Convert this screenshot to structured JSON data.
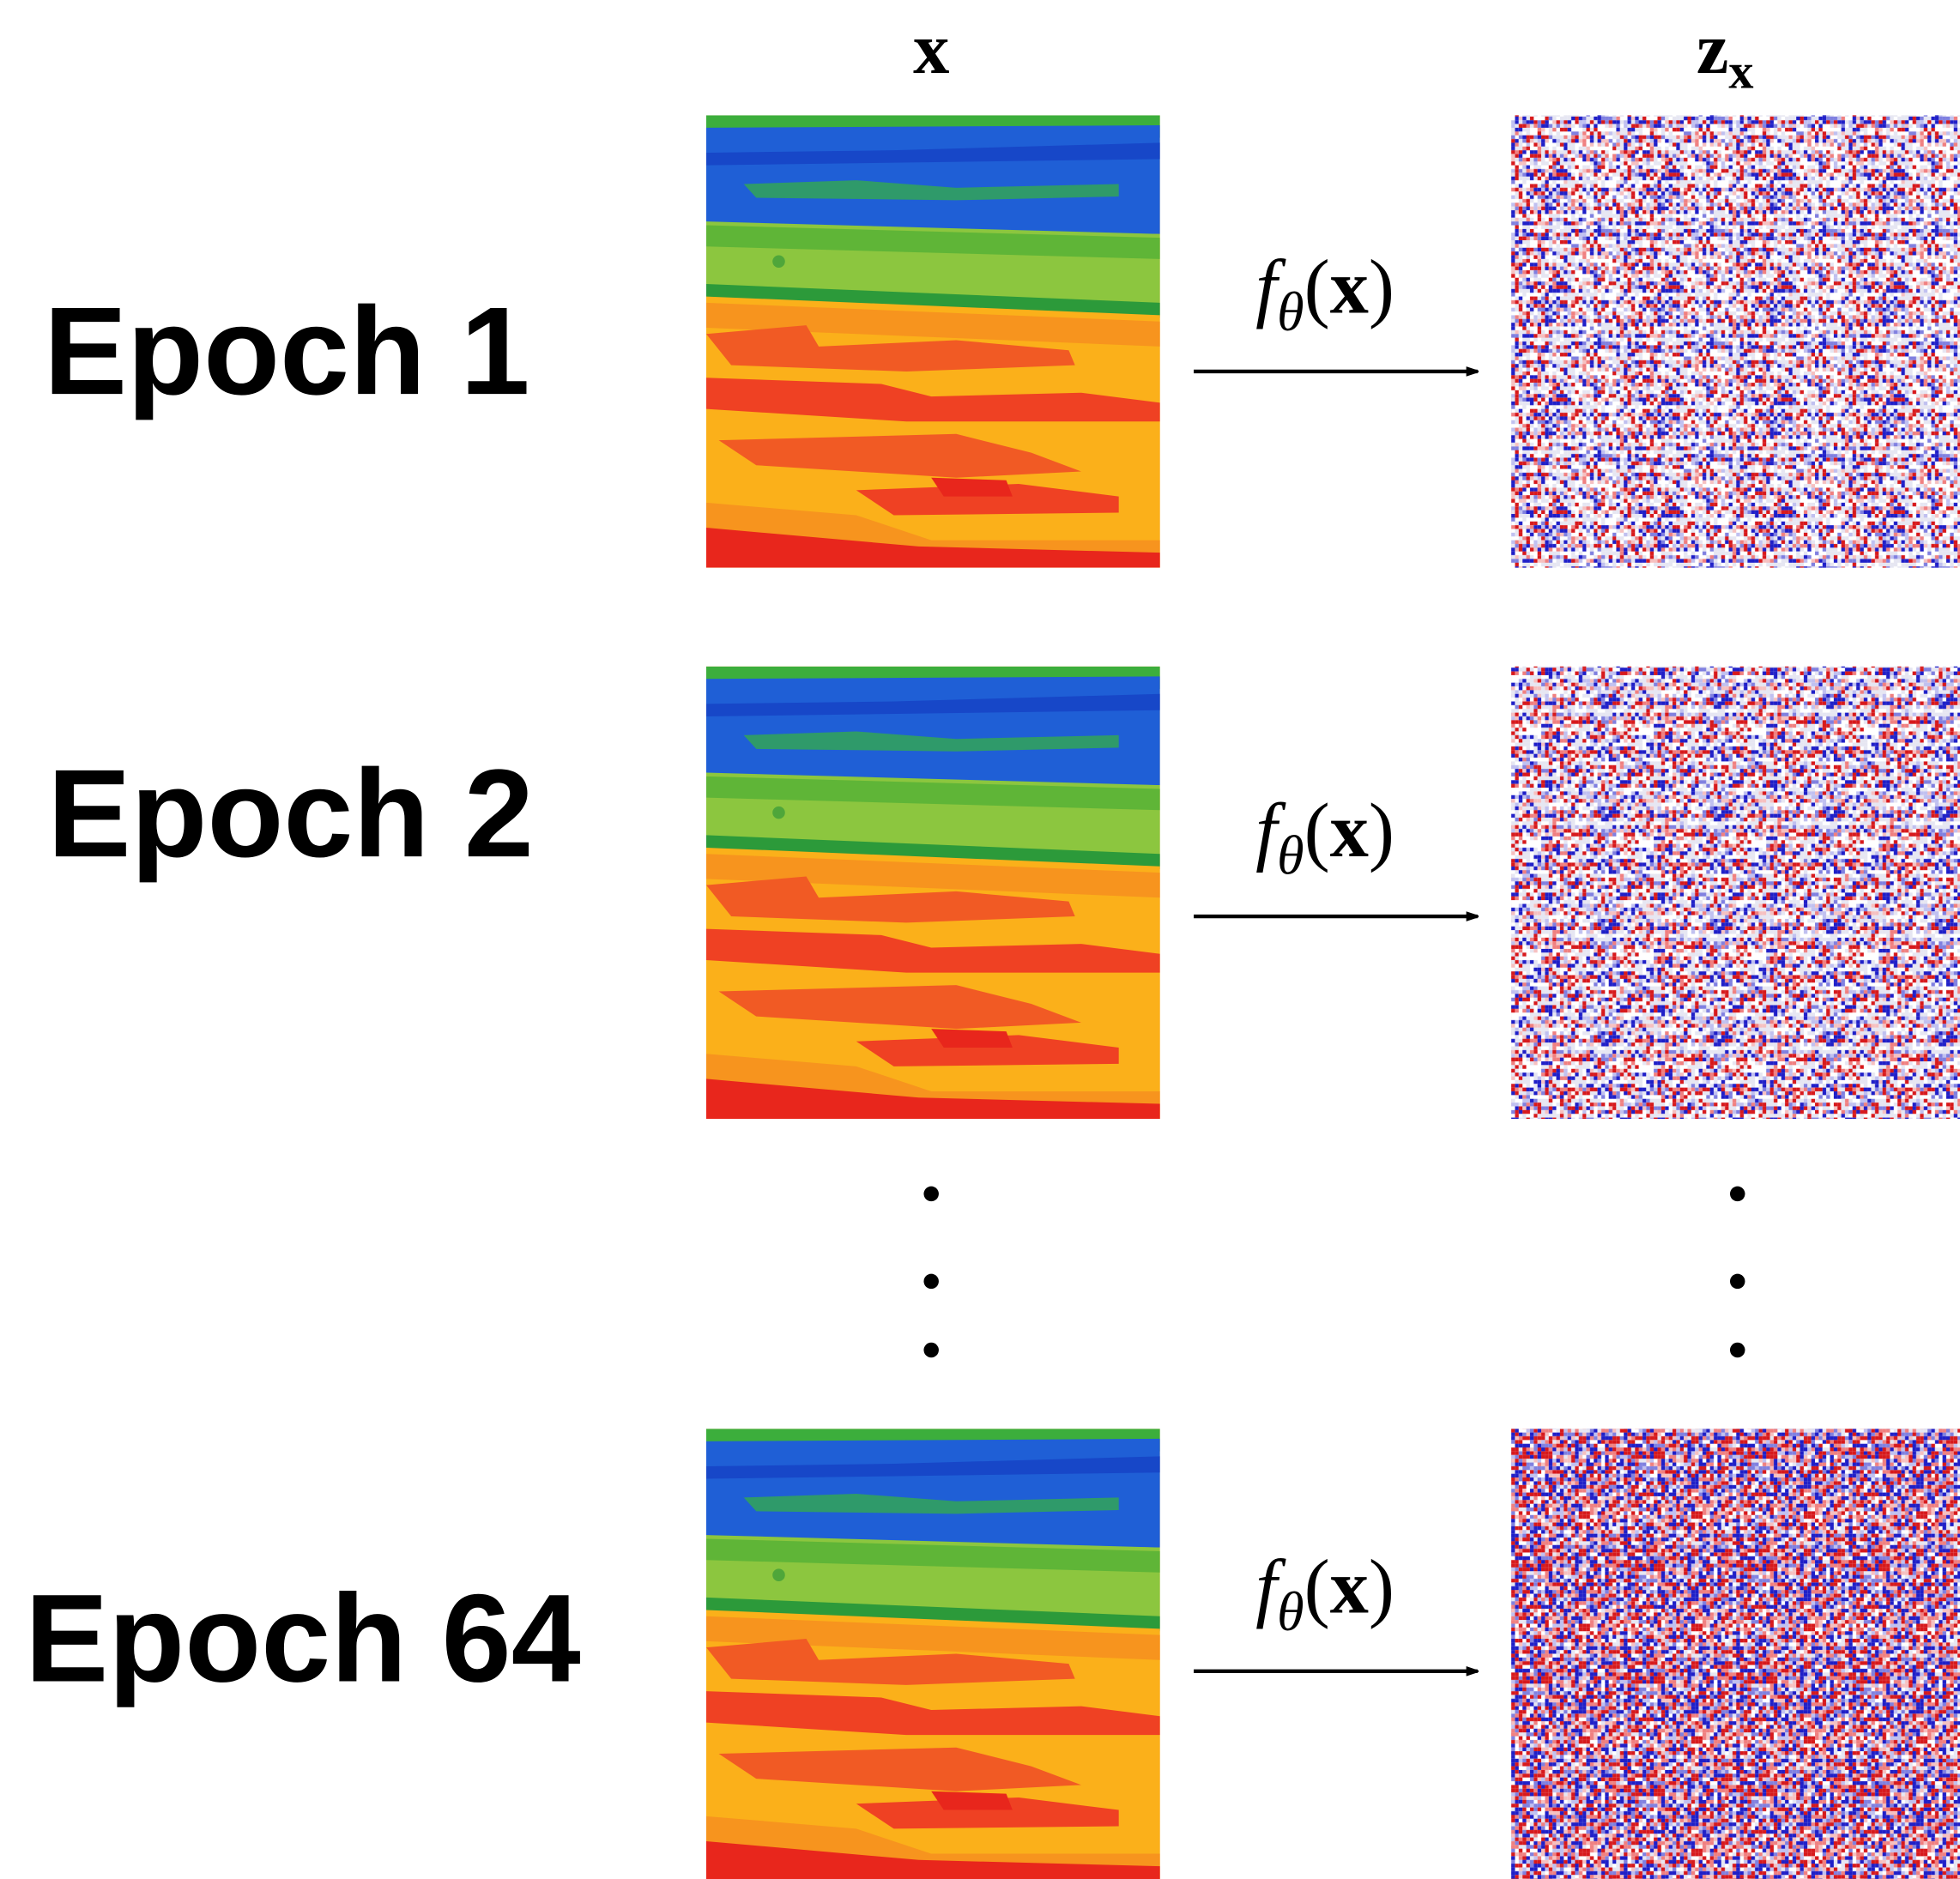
{
  "columns": {
    "input": "x",
    "latent": "z",
    "latent_subscript": "x"
  },
  "rows": [
    {
      "label": "Epoch 1",
      "function": "f",
      "parameter": "θ",
      "left_paren": "(",
      "argument": "x",
      "right_paren": ")"
    },
    {
      "label": "Epoch 2",
      "function": "f",
      "parameter": "θ",
      "left_paren": "(",
      "argument": "x",
      "right_paren": ")"
    },
    {
      "label": "Epoch 64",
      "function": "f",
      "parameter": "θ",
      "left_paren": "(",
      "argument": "x",
      "right_paren": ")"
    }
  ]
}
